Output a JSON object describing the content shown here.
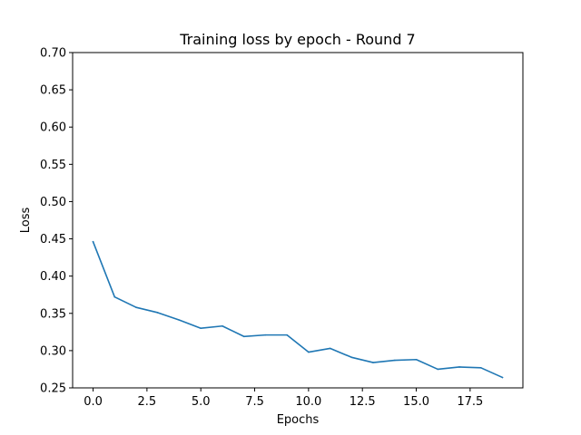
{
  "chart_data": {
    "type": "line",
    "title": "Training loss by epoch - Round 7",
    "xlabel": "Epochs",
    "ylabel": "Loss",
    "xlim": [
      -0.95,
      19.95
    ],
    "ylim": [
      0.25,
      0.7
    ],
    "xticks": [
      0.0,
      2.5,
      5.0,
      7.5,
      10.0,
      12.5,
      15.0,
      17.5
    ],
    "xtick_labels": [
      "0.0",
      "2.5",
      "5.0",
      "7.5",
      "10.0",
      "12.5",
      "15.0",
      "17.5"
    ],
    "yticks": [
      0.25,
      0.3,
      0.35,
      0.4,
      0.45,
      0.5,
      0.55,
      0.6,
      0.65,
      0.7
    ],
    "ytick_labels": [
      "0.25",
      "0.30",
      "0.35",
      "0.40",
      "0.45",
      "0.50",
      "0.55",
      "0.60",
      "0.65",
      "0.70"
    ],
    "grid": false,
    "legend": "none",
    "series": [
      {
        "color": "#1f77b4",
        "x": [
          0,
          1,
          2,
          3,
          4,
          5,
          6,
          7,
          8,
          9,
          10,
          11,
          12,
          13,
          14,
          15,
          16,
          17,
          18,
          19
        ],
        "values": [
          0.446,
          0.372,
          0.358,
          0.351,
          0.341,
          0.33,
          0.333,
          0.319,
          0.321,
          0.321,
          0.298,
          0.303,
          0.291,
          0.284,
          0.287,
          0.288,
          0.275,
          0.278,
          0.277,
          0.264
        ]
      }
    ]
  }
}
